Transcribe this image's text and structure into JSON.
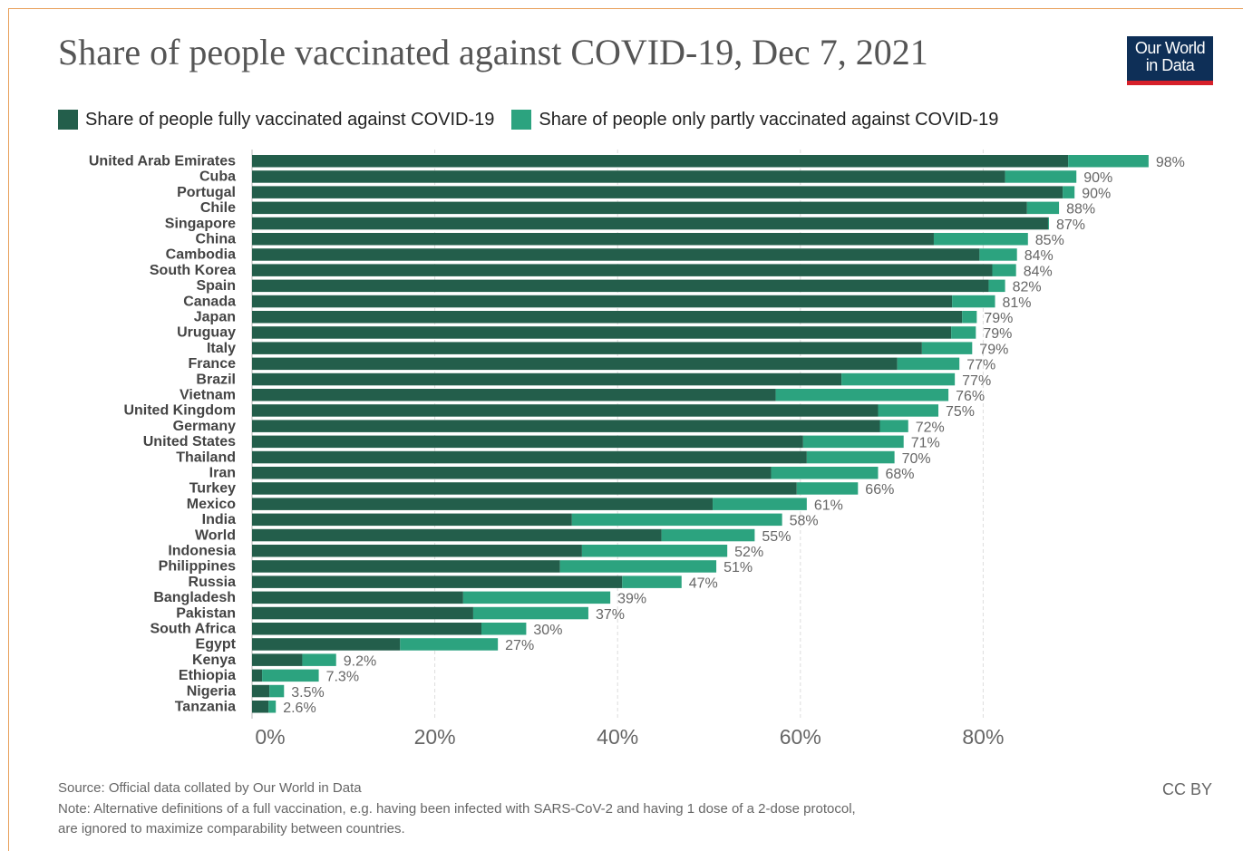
{
  "title": "Share of people vaccinated against COVID-19, Dec 7, 2021",
  "logo": {
    "line1": "Our World",
    "line2": "in Data",
    "bg_color": "#0e2f57",
    "accent_color": "#d6202a"
  },
  "colors": {
    "fully": "#235e4b",
    "partly": "#2ca37f",
    "grid": "#dddddd",
    "tick": "#666666",
    "label": "#444444"
  },
  "chart_data": {
    "type": "bar",
    "orientation": "horizontal",
    "stacked": true,
    "categories": [
      "United Arab Emirates",
      "Cuba",
      "Portugal",
      "Chile",
      "Singapore",
      "China",
      "Cambodia",
      "South Korea",
      "Spain",
      "Canada",
      "Japan",
      "Uruguay",
      "Italy",
      "France",
      "Brazil",
      "Vietnam",
      "United Kingdom",
      "Germany",
      "United States",
      "Thailand",
      "Iran",
      "Turkey",
      "Mexico",
      "India",
      "World",
      "Indonesia",
      "Philippines",
      "Russia",
      "Bangladesh",
      "Pakistan",
      "South Africa",
      "Egypt",
      "Kenya",
      "Ethiopia",
      "Nigeria",
      "Tanzania"
    ],
    "series": [
      {
        "name": "Share of people fully vaccinated against COVID-19",
        "color": "#235e4b",
        "values": [
          89.3,
          82.4,
          88.7,
          84.8,
          87.1,
          74.6,
          79.6,
          81,
          80.6,
          76.6,
          77.7,
          76.5,
          73.3,
          70.6,
          64.5,
          57.3,
          68.5,
          68.7,
          60.3,
          60.7,
          56.8,
          59.6,
          50.4,
          35,
          44.8,
          36.1,
          33.7,
          40.5,
          23.1,
          24.2,
          25.1,
          16.2,
          5.5,
          1.1,
          1.9,
          1.8
        ]
      },
      {
        "name": "Share of people only partly vaccinated against COVID-19",
        "color": "#2ca37f",
        "values": [
          8.8,
          7.8,
          1.3,
          3.5,
          0.1,
          10.3,
          4.1,
          2.6,
          1.8,
          4.7,
          1.6,
          2.7,
          5.5,
          6.8,
          12.4,
          18.9,
          6.6,
          3.1,
          11,
          9.6,
          11.7,
          6.7,
          10.3,
          23,
          10.2,
          15.9,
          17.1,
          6.5,
          16.1,
          12.6,
          4.9,
          10.7,
          3.7,
          6.2,
          1.6,
          0.8
        ]
      }
    ],
    "value_labels": [
      "98%",
      "90%",
      "90%",
      "88%",
      "87%",
      "85%",
      "84%",
      "84%",
      "82%",
      "81%",
      "79%",
      "79%",
      "79%",
      "77%",
      "77%",
      "76%",
      "75%",
      "72%",
      "71%",
      "70%",
      "68%",
      "66%",
      "61%",
      "58%",
      "55%",
      "52%",
      "51%",
      "47%",
      "39%",
      "37%",
      "30%",
      "27%",
      "9.2%",
      "7.3%",
      "3.5%",
      "2.6%"
    ],
    "x_ticks": [
      0,
      20,
      40,
      60,
      80
    ],
    "x_tick_labels": [
      "0%",
      "20%",
      "40%",
      "60%",
      "80%"
    ],
    "xlim": [
      0,
      100
    ],
    "grid": "vertical dashed",
    "legend_position": "top"
  },
  "footer": {
    "source": "Source: Official data collated by Our World in Data",
    "note_line1": "Note: Alternative definitions of a full vaccination, e.g. having been infected with SARS-CoV-2 and having 1 dose of a 2-dose protocol,",
    "note_line2": "are ignored to maximize comparability between countries.",
    "license": "CC BY"
  }
}
